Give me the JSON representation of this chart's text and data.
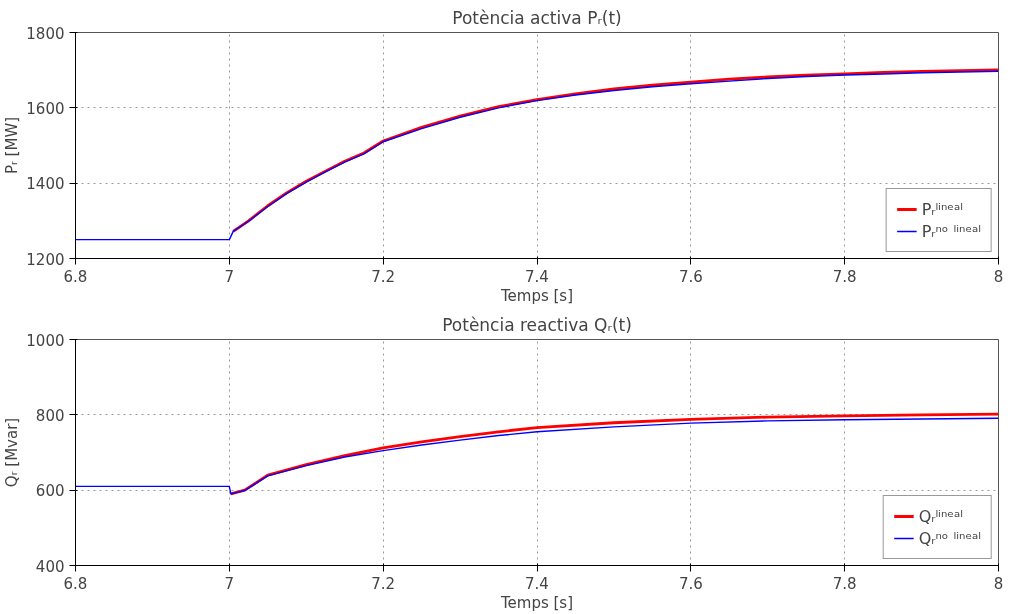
{
  "chart_data": [
    {
      "type": "line",
      "title": "Potència activa Pᵣ(t)",
      "xlabel": "Temps [s]",
      "ylabel": "Pᵣ [MW]",
      "xlim": [
        6.8,
        8
      ],
      "ylim": [
        1200,
        1800
      ],
      "xticks": [
        6.8,
        7,
        7.2,
        7.4,
        7.6,
        7.8,
        8
      ],
      "yticks": [
        1200,
        1400,
        1600,
        1800
      ],
      "grid": true,
      "legend": "bottom right",
      "line_style": "solid",
      "x": [
        6.8,
        7.0,
        7.005,
        7.025,
        7.05,
        7.075,
        7.1,
        7.125,
        7.15,
        7.175,
        7.2,
        7.25,
        7.3,
        7.35,
        7.4,
        7.45,
        7.5,
        7.55,
        7.6,
        7.65,
        7.7,
        7.75,
        7.8,
        7.85,
        7.9,
        7.95,
        8.0
      ],
      "series": [
        {
          "name": "Pᵣˡⁱⁿᵉᵃˡ",
          "color": "#ff0000",
          "values": [
            null,
            null,
            1272,
            1300,
            1340,
            1375,
            1405,
            1432,
            1458,
            1480,
            1512,
            1548,
            1578,
            1603,
            1622,
            1637,
            1650,
            1660,
            1668,
            1676,
            1682,
            1687,
            1690,
            1694,
            1697,
            1699,
            1701
          ]
        },
        {
          "name": "Pᵣⁿᵒ ˡⁱⁿᵉᵃˡ",
          "color": "#0000ff",
          "values": [
            1250,
            1250,
            1272,
            1299,
            1338,
            1373,
            1403,
            1430,
            1456,
            1478,
            1510,
            1545,
            1575,
            1600,
            1619,
            1634,
            1646,
            1656,
            1664,
            1671,
            1678,
            1683,
            1687,
            1690,
            1693,
            1695,
            1697
          ]
        }
      ]
    },
    {
      "type": "line",
      "title": "Potència reactiva Qᵣ(t)",
      "xlabel": "Temps [s]",
      "ylabel": "Qᵣ [Mvar]",
      "xlim": [
        6.8,
        8
      ],
      "ylim": [
        400,
        1000
      ],
      "xticks": [
        6.8,
        7,
        7.2,
        7.4,
        7.6,
        7.8,
        8
      ],
      "yticks": [
        400,
        600,
        800,
        1000
      ],
      "grid": true,
      "legend": "bottom right",
      "line_style": "solid",
      "x": [
        6.8,
        7.0,
        7.002,
        7.02,
        7.05,
        7.1,
        7.15,
        7.2,
        7.25,
        7.3,
        7.35,
        7.4,
        7.5,
        7.6,
        7.7,
        7.8,
        7.9,
        8.0
      ],
      "series": [
        {
          "name": "Qᵣˡⁱⁿᵉᵃˡ",
          "color": "#ff0000",
          "values": [
            null,
            null,
            590,
            600,
            640,
            668,
            692,
            712,
            728,
            742,
            755,
            766,
            779,
            788,
            794,
            797,
            800,
            802
          ]
        },
        {
          "name": "Qᵣⁿᵒ ˡⁱⁿᵉᵃˡ",
          "color": "#0000ff",
          "values": [
            610,
            610,
            590,
            599,
            638,
            665,
            688,
            705,
            720,
            733,
            745,
            755,
            768,
            778,
            784,
            787,
            789,
            791
          ]
        }
      ]
    }
  ]
}
